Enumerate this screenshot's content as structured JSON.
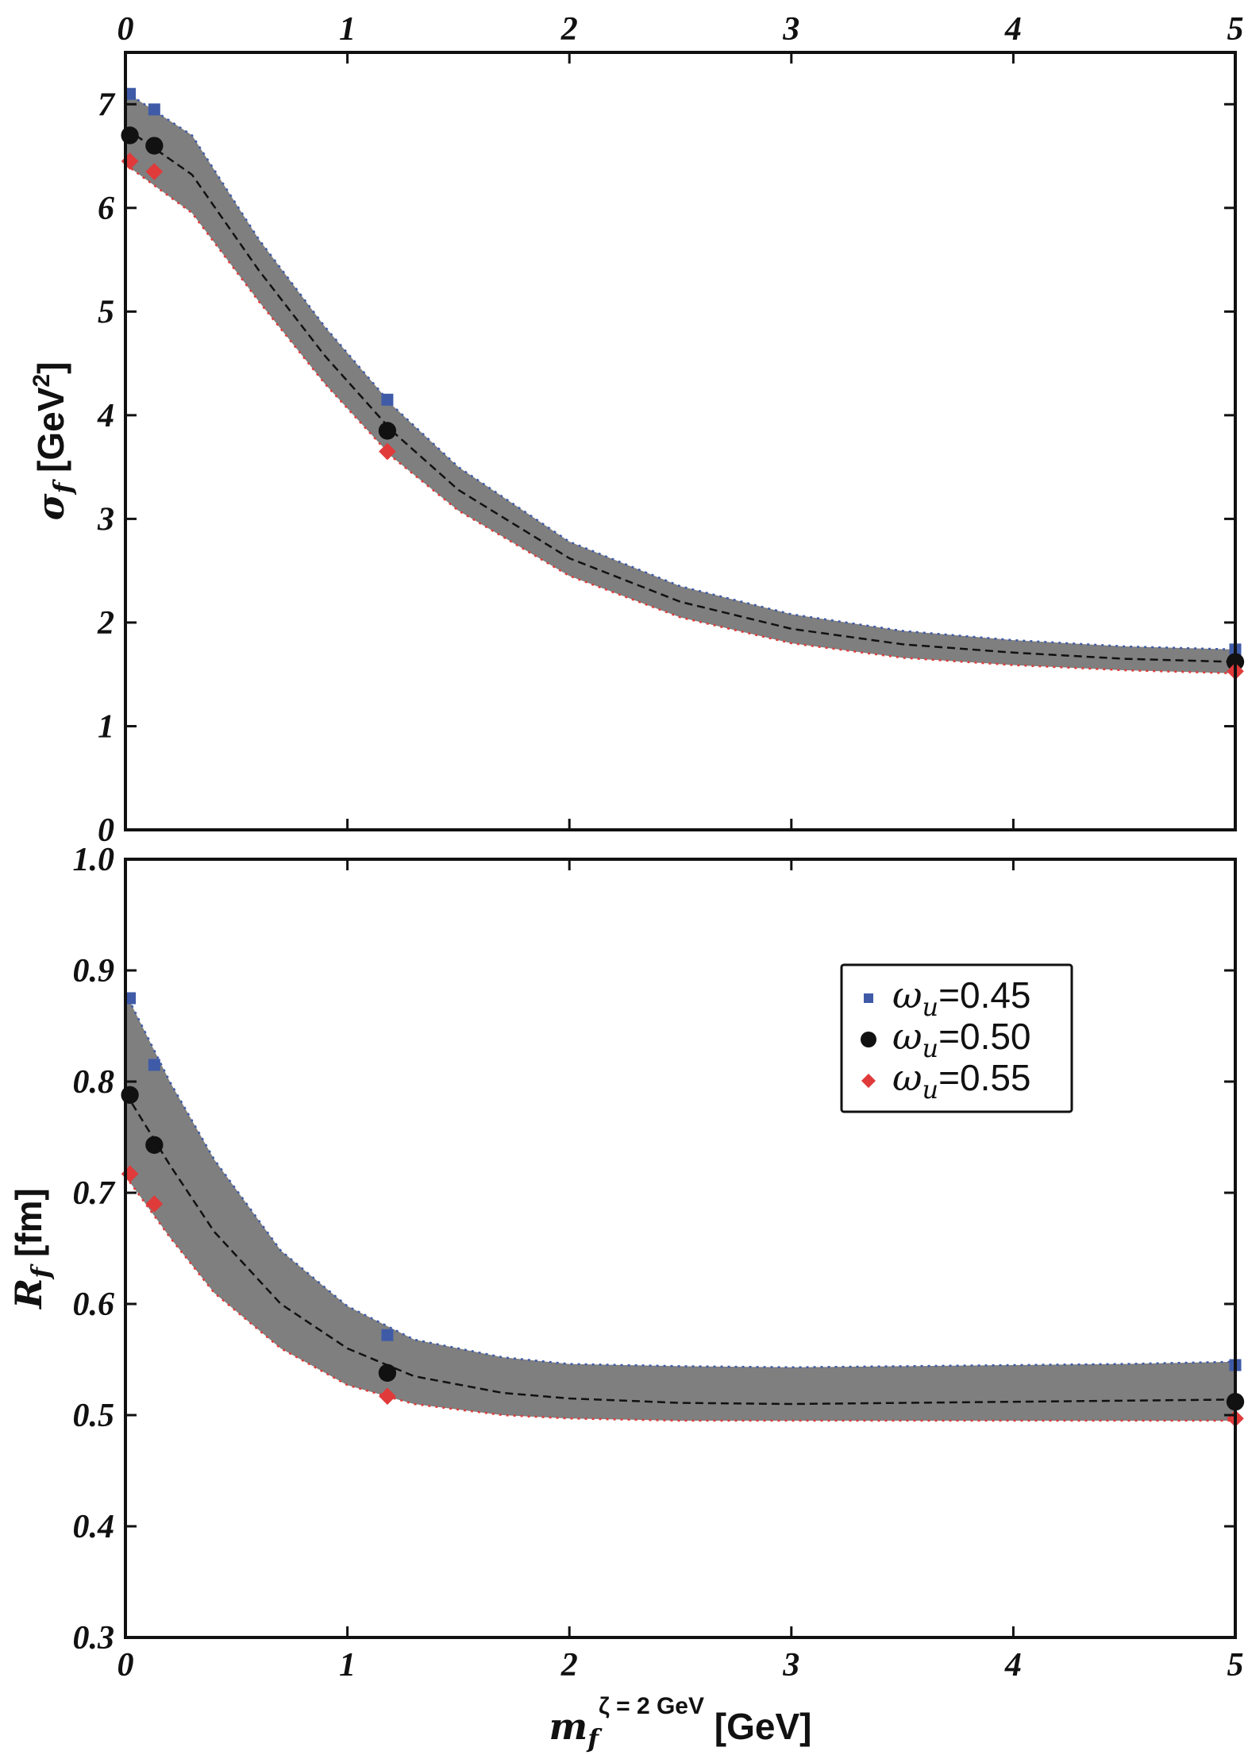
{
  "chart_data": [
    {
      "type": "line",
      "ylabel": "σ_f [GeV^2]",
      "ylabel_parts": {
        "symbol": "σ",
        "subscript": "f",
        "unit_open": " [GeV",
        "superscript": "2",
        "unit_close": "]"
      },
      "xlim": [
        0,
        5
      ],
      "ylim": [
        0,
        7.5
      ],
      "xticks": [
        "0",
        "1",
        "2",
        "3",
        "4",
        "5"
      ],
      "xtick_values": [
        0,
        1,
        2,
        3,
        4,
        5
      ],
      "yticks": [
        "0",
        "1",
        "2",
        "3",
        "4",
        "5",
        "6",
        "7"
      ],
      "ytick_values": [
        0,
        1,
        2,
        3,
        4,
        5,
        6,
        7
      ],
      "band": {
        "x": [
          0.0,
          0.3,
          0.6,
          0.9,
          1.2,
          1.5,
          2.0,
          2.5,
          3.0,
          3.5,
          4.0,
          4.5,
          5.0
        ],
        "upper": [
          7.12,
          6.7,
          5.7,
          4.85,
          4.1,
          3.5,
          2.78,
          2.35,
          2.08,
          1.92,
          1.83,
          1.77,
          1.74
        ],
        "lower": [
          6.42,
          5.95,
          5.1,
          4.3,
          3.6,
          3.08,
          2.45,
          2.05,
          1.8,
          1.66,
          1.59,
          1.54,
          1.51
        ]
      },
      "center_line": {
        "x": [
          0.0,
          0.3,
          0.6,
          0.9,
          1.2,
          1.5,
          2.0,
          2.5,
          3.0,
          3.5,
          4.0,
          4.5,
          5.0
        ],
        "y": [
          6.77,
          6.32,
          5.4,
          4.57,
          3.85,
          3.28,
          2.62,
          2.2,
          1.94,
          1.79,
          1.71,
          1.65,
          1.62
        ]
      },
      "series": [
        {
          "name": "ω_u=0.45",
          "marker": "square",
          "color": "#3f5ba8",
          "x": [
            0.02,
            0.13,
            1.18,
            5.0
          ],
          "y": [
            7.1,
            6.95,
            4.15,
            1.74
          ]
        },
        {
          "name": "ω_u=0.50",
          "marker": "circle",
          "color": "#111111",
          "x": [
            0.02,
            0.13,
            1.18,
            5.0
          ],
          "y": [
            6.7,
            6.6,
            3.85,
            1.62
          ]
        },
        {
          "name": "ω_u=0.55",
          "marker": "diamond",
          "color": "#e03a3a",
          "x": [
            0.02,
            0.13,
            1.18,
            5.0
          ],
          "y": [
            6.45,
            6.35,
            3.65,
            1.53
          ]
        }
      ]
    },
    {
      "type": "line",
      "ylabel": "R_f [fm]",
      "ylabel_parts": {
        "symbol": "R",
        "subscript": "f",
        "unit": " [fm]"
      },
      "xlabel": "m_f^(ζ = 2 GeV) [GeV]",
      "xlabel_parts": {
        "symbol": "m",
        "subscript": "f",
        "superscript": "ζ = 2 GeV",
        "unit": " [GeV]"
      },
      "xlim": [
        0,
        5
      ],
      "ylim": [
        0.3,
        1.0
      ],
      "xticks": [
        "0",
        "1",
        "2",
        "3",
        "4",
        "5"
      ],
      "xtick_values": [
        0,
        1,
        2,
        3,
        4,
        5
      ],
      "yticks": [
        "0.3",
        "0.4",
        "0.5",
        "0.6",
        "0.7",
        "0.8",
        "0.9",
        "1.0"
      ],
      "ytick_values": [
        0.3,
        0.4,
        0.5,
        0.6,
        0.7,
        0.8,
        0.9,
        1.0
      ],
      "legend_position": "upper-right",
      "band": {
        "x": [
          0.0,
          0.2,
          0.4,
          0.7,
          1.0,
          1.3,
          1.7,
          2.0,
          2.5,
          3.0,
          3.5,
          4.0,
          4.5,
          5.0
        ],
        "upper": [
          0.88,
          0.8,
          0.73,
          0.648,
          0.598,
          0.568,
          0.552,
          0.546,
          0.544,
          0.543,
          0.544,
          0.545,
          0.546,
          0.548
        ],
        "lower": [
          0.715,
          0.66,
          0.61,
          0.56,
          0.527,
          0.51,
          0.5,
          0.497,
          0.495,
          0.495,
          0.495,
          0.495,
          0.495,
          0.495
        ]
      },
      "center_line": {
        "x": [
          0.0,
          0.2,
          0.4,
          0.7,
          1.0,
          1.3,
          1.7,
          2.0,
          2.5,
          3.0,
          3.5,
          4.0,
          4.5,
          5.0
        ],
        "y": [
          0.79,
          0.725,
          0.665,
          0.6,
          0.56,
          0.535,
          0.52,
          0.515,
          0.511,
          0.51,
          0.511,
          0.512,
          0.513,
          0.514
        ]
      },
      "series": [
        {
          "name": "ω_u=0.45",
          "marker": "square",
          "color": "#3f5ba8",
          "x": [
            0.02,
            0.13,
            1.18,
            5.0
          ],
          "y": [
            0.875,
            0.815,
            0.572,
            0.545
          ]
        },
        {
          "name": "ω_u=0.50",
          "marker": "circle",
          "color": "#111111",
          "x": [
            0.02,
            0.13,
            1.18,
            5.0
          ],
          "y": [
            0.788,
            0.743,
            0.538,
            0.512
          ]
        },
        {
          "name": "ω_u=0.55",
          "marker": "diamond",
          "color": "#e03a3a",
          "x": [
            0.02,
            0.13,
            1.18,
            5.0
          ],
          "y": [
            0.717,
            0.69,
            0.517,
            0.497
          ]
        }
      ]
    }
  ],
  "legend": {
    "items": [
      {
        "symbol": "ω",
        "sub": "u",
        "value": "=0.45",
        "marker": "square",
        "color": "#3f5ba8"
      },
      {
        "symbol": "ω",
        "sub": "u",
        "value": "=0.50",
        "marker": "circle",
        "color": "#111111"
      },
      {
        "symbol": "ω",
        "sub": "u",
        "value": "=0.55",
        "marker": "diamond",
        "color": "#e03a3a"
      }
    ]
  },
  "colors": {
    "band": "#7f7f7f",
    "center_line": "#111111",
    "frame": "#111111",
    "background": "#ffffff"
  }
}
